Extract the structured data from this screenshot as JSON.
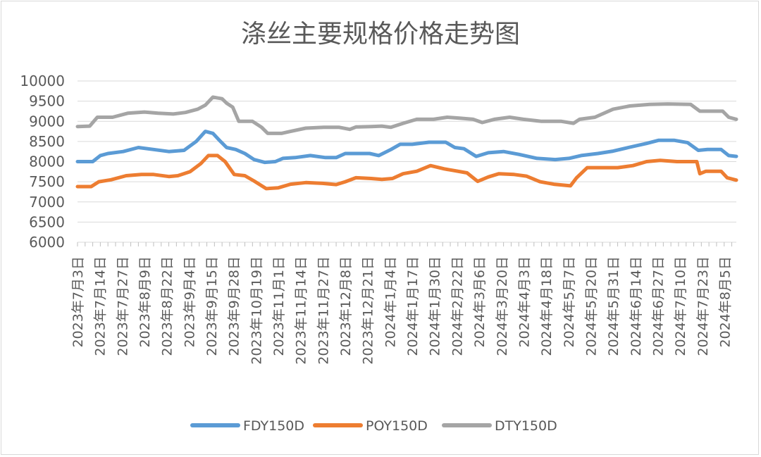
{
  "chart_data": {
    "type": "line",
    "title": "涤丝主要规格价格走势图",
    "ylim": [
      6000,
      10000
    ],
    "yticks": [
      6000,
      6500,
      7000,
      7500,
      8000,
      8500,
      9000,
      9500,
      10000
    ],
    "grid": true,
    "legend_position": "bottom",
    "x_tick_labels": [
      "2023年7月3日",
      "2023年7月14日",
      "2023年7月27日",
      "2023年8月9日",
      "2023年8月22日",
      "2023年9月4日",
      "2023年9月15日",
      "2023年9月28日",
      "2023年10月19日",
      "2023年11月1日",
      "2023年11月14日",
      "2023年11月27日",
      "2023年12月8日",
      "2023年12月21日",
      "2024年1月4日",
      "2024年1月17日",
      "2024年1月30日",
      "2024年2月22日",
      "2024年3月6日",
      "2024年3月20日",
      "2024年4月3日",
      "2024年4月18日",
      "2024年5月7日",
      "2024年5月20日",
      "2024年5月31日",
      "2024年6月14日",
      "2024年6月27日",
      "2024年7月10日",
      "2024年7月23日",
      "2024年8月5日"
    ],
    "series": [
      {
        "name": "FDY150D",
        "color": "#5b9bd5",
        "points": [
          [
            0,
            8000
          ],
          [
            1,
            8000
          ],
          [
            1.5,
            8150
          ],
          [
            2,
            8200
          ],
          [
            3,
            8250
          ],
          [
            4,
            8350
          ],
          [
            5,
            8300
          ],
          [
            6,
            8250
          ],
          [
            7,
            8280
          ],
          [
            7.8,
            8500
          ],
          [
            8.4,
            8750
          ],
          [
            8.9,
            8700
          ],
          [
            9.4,
            8500
          ],
          [
            9.8,
            8350
          ],
          [
            10.4,
            8300
          ],
          [
            11,
            8200
          ],
          [
            11.6,
            8050
          ],
          [
            12.3,
            7980
          ],
          [
            13,
            8000
          ],
          [
            13.5,
            8080
          ],
          [
            14.3,
            8100
          ],
          [
            15.3,
            8150
          ],
          [
            16.3,
            8100
          ],
          [
            17,
            8100
          ],
          [
            17.6,
            8200
          ],
          [
            18.4,
            8200
          ],
          [
            19.2,
            8200
          ],
          [
            19.8,
            8150
          ],
          [
            20.6,
            8300
          ],
          [
            21.2,
            8430
          ],
          [
            22,
            8430
          ],
          [
            23.1,
            8480
          ],
          [
            24.2,
            8480
          ],
          [
            24.8,
            8350
          ],
          [
            25.4,
            8320
          ],
          [
            26.2,
            8130
          ],
          [
            27,
            8220
          ],
          [
            28,
            8250
          ],
          [
            29,
            8180
          ],
          [
            30.2,
            8080
          ],
          [
            31.4,
            8050
          ],
          [
            32.3,
            8080
          ],
          [
            33.1,
            8150
          ],
          [
            34.2,
            8200
          ],
          [
            35.2,
            8260
          ],
          [
            36.2,
            8350
          ],
          [
            37.4,
            8450
          ],
          [
            38.2,
            8530
          ],
          [
            39.2,
            8530
          ],
          [
            40.1,
            8470
          ],
          [
            40.8,
            8280
          ],
          [
            41.4,
            8300
          ],
          [
            42.3,
            8300
          ],
          [
            42.8,
            8150
          ],
          [
            43.3,
            8130
          ]
        ]
      },
      {
        "name": "POY150D",
        "color": "#ed7d31",
        "points": [
          [
            0,
            7380
          ],
          [
            0.9,
            7380
          ],
          [
            1.4,
            7500
          ],
          [
            2.2,
            7550
          ],
          [
            3.2,
            7650
          ],
          [
            4.2,
            7680
          ],
          [
            5,
            7680
          ],
          [
            6,
            7630
          ],
          [
            6.6,
            7650
          ],
          [
            7.4,
            7750
          ],
          [
            8.1,
            7950
          ],
          [
            8.6,
            8150
          ],
          [
            9.2,
            8150
          ],
          [
            9.7,
            8000
          ],
          [
            10.3,
            7680
          ],
          [
            11,
            7650
          ],
          [
            11.6,
            7520
          ],
          [
            12.4,
            7330
          ],
          [
            13.2,
            7350
          ],
          [
            14,
            7440
          ],
          [
            15,
            7480
          ],
          [
            16.1,
            7460
          ],
          [
            17,
            7430
          ],
          [
            17.6,
            7500
          ],
          [
            18.3,
            7600
          ],
          [
            19.3,
            7580
          ],
          [
            20,
            7560
          ],
          [
            20.7,
            7580
          ],
          [
            21.4,
            7700
          ],
          [
            22.3,
            7760
          ],
          [
            23.2,
            7900
          ],
          [
            24.1,
            7820
          ],
          [
            24.7,
            7780
          ],
          [
            25.6,
            7720
          ],
          [
            26.3,
            7510
          ],
          [
            27,
            7620
          ],
          [
            27.7,
            7700
          ],
          [
            28.7,
            7680
          ],
          [
            29.5,
            7640
          ],
          [
            30.4,
            7500
          ],
          [
            31.3,
            7440
          ],
          [
            32.4,
            7400
          ],
          [
            32.8,
            7600
          ],
          [
            33.5,
            7850
          ],
          [
            34.5,
            7850
          ],
          [
            35.5,
            7850
          ],
          [
            36.5,
            7900
          ],
          [
            37.4,
            8000
          ],
          [
            38.3,
            8030
          ],
          [
            39.4,
            8000
          ],
          [
            40.7,
            8000
          ],
          [
            40.9,
            7700
          ],
          [
            41.3,
            7760
          ],
          [
            42.3,
            7760
          ],
          [
            42.7,
            7600
          ],
          [
            43.3,
            7540
          ]
        ]
      },
      {
        "name": "DTY150D",
        "color": "#a5a5a5",
        "points": [
          [
            0,
            8870
          ],
          [
            0.8,
            8880
          ],
          [
            1.3,
            9100
          ],
          [
            2.3,
            9100
          ],
          [
            3.3,
            9200
          ],
          [
            4.4,
            9230
          ],
          [
            5.3,
            9200
          ],
          [
            6.3,
            9180
          ],
          [
            7.1,
            9220
          ],
          [
            7.9,
            9300
          ],
          [
            8.4,
            9400
          ],
          [
            8.9,
            9600
          ],
          [
            9.5,
            9560
          ],
          [
            9.8,
            9450
          ],
          [
            10.2,
            9350
          ],
          [
            10.6,
            9000
          ],
          [
            11.5,
            9000
          ],
          [
            12.1,
            8850
          ],
          [
            12.5,
            8700
          ],
          [
            13.4,
            8700
          ],
          [
            14,
            8750
          ],
          [
            15,
            8830
          ],
          [
            16.2,
            8850
          ],
          [
            17.2,
            8850
          ],
          [
            17.9,
            8800
          ],
          [
            18.3,
            8860
          ],
          [
            19.3,
            8870
          ],
          [
            20,
            8880
          ],
          [
            20.6,
            8850
          ],
          [
            21.4,
            8950
          ],
          [
            22.3,
            9050
          ],
          [
            23.4,
            9050
          ],
          [
            24.3,
            9100
          ],
          [
            25.1,
            9080
          ],
          [
            26,
            9050
          ],
          [
            26.6,
            8970
          ],
          [
            27.4,
            9050
          ],
          [
            28.4,
            9100
          ],
          [
            29.3,
            9050
          ],
          [
            30.5,
            9000
          ],
          [
            31.8,
            9000
          ],
          [
            32.6,
            8950
          ],
          [
            33,
            9050
          ],
          [
            34,
            9100
          ],
          [
            35.2,
            9300
          ],
          [
            36.3,
            9380
          ],
          [
            37.6,
            9420
          ],
          [
            38.8,
            9430
          ],
          [
            40.3,
            9420
          ],
          [
            40.9,
            9250
          ],
          [
            41.4,
            9250
          ],
          [
            42.4,
            9250
          ],
          [
            42.8,
            9100
          ],
          [
            43.3,
            9050
          ]
        ]
      }
    ]
  }
}
